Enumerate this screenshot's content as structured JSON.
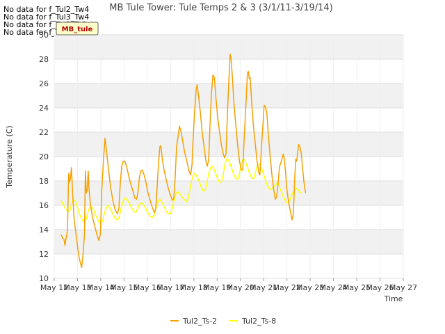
{
  "no_data_messages": [
    "No data for f_Tul2_Tw4",
    "No data for f_Tul3_Tw4",
    "No data for f_Tul3_Ts2",
    "No data for f_Tul3_Ts8"
  ],
  "badge": {
    "text": "MB_tule",
    "bg_color": "#ffffcc",
    "text_color": "#b00000"
  },
  "chart_data": {
    "type": "line",
    "title": "MB Tule Tower: Tule Temps 2 & 3 (3/1/11-3/19/14)",
    "xlabel": "Time",
    "ylabel": "Temperature (C)",
    "xlim": [
      0,
      15
    ],
    "ylim": [
      10,
      30
    ],
    "x_ticks": [
      0,
      1,
      2,
      3,
      4,
      5,
      6,
      7,
      8,
      9,
      10,
      11,
      12,
      13,
      14,
      15
    ],
    "x_tick_labels": [
      "May 12",
      "May 13",
      "May 14",
      "May 15",
      "May 16",
      "May 17",
      "May 18",
      "May 19",
      "May 20",
      "May 21",
      "May 22",
      "May 23",
      "May 24",
      "May 25",
      "May 26",
      "May 27"
    ],
    "y_ticks": [
      10,
      12,
      14,
      16,
      18,
      20,
      22,
      24,
      26,
      28,
      30
    ],
    "y_tick_labels": [
      "10",
      "12",
      "14",
      "16",
      "18",
      "20",
      "22",
      "24",
      "26",
      "28",
      "30"
    ],
    "grid": true,
    "legend_position": "bottom-center",
    "series": [
      {
        "name": "Tul2_Ts-2",
        "color": "#f5a000",
        "points": [
          [
            0.3,
            13.6
          ],
          [
            0.36,
            13.3
          ],
          [
            0.42,
            13.2
          ],
          [
            0.46,
            12.7
          ],
          [
            0.52,
            13.4
          ],
          [
            0.57,
            14.0
          ],
          [
            0.62,
            18.6
          ],
          [
            0.66,
            17.9
          ],
          [
            0.7,
            18.2
          ],
          [
            0.74,
            19.1
          ],
          [
            0.78,
            17.4
          ],
          [
            0.85,
            15.0
          ],
          [
            0.95,
            13.4
          ],
          [
            1.05,
            11.9
          ],
          [
            1.12,
            11.3
          ],
          [
            1.18,
            10.9
          ],
          [
            1.24,
            12.0
          ],
          [
            1.3,
            13.6
          ],
          [
            1.34,
            18.8
          ],
          [
            1.38,
            17.0
          ],
          [
            1.42,
            17.3
          ],
          [
            1.46,
            18.8
          ],
          [
            1.5,
            17.2
          ],
          [
            1.56,
            16.0
          ],
          [
            1.65,
            15.0
          ],
          [
            1.75,
            14.2
          ],
          [
            1.85,
            13.5
          ],
          [
            1.92,
            13.1
          ],
          [
            1.98,
            13.6
          ],
          [
            2.05,
            17.5
          ],
          [
            2.12,
            19.8
          ],
          [
            2.18,
            21.5
          ],
          [
            2.25,
            20.4
          ],
          [
            2.33,
            19.0
          ],
          [
            2.42,
            17.5
          ],
          [
            2.52,
            16.4
          ],
          [
            2.62,
            15.6
          ],
          [
            2.72,
            15.3
          ],
          [
            2.78,
            15.8
          ],
          [
            2.84,
            17.8
          ],
          [
            2.9,
            19.2
          ],
          [
            2.96,
            19.6
          ],
          [
            3.04,
            19.6
          ],
          [
            3.12,
            19.1
          ],
          [
            3.2,
            18.4
          ],
          [
            3.28,
            17.8
          ],
          [
            3.38,
            17.2
          ],
          [
            3.46,
            16.6
          ],
          [
            3.54,
            16.5
          ],
          [
            3.6,
            17.1
          ],
          [
            3.66,
            18.3
          ],
          [
            3.72,
            18.8
          ],
          [
            3.78,
            18.9
          ],
          [
            3.86,
            18.5
          ],
          [
            3.94,
            17.9
          ],
          [
            4.02,
            17.1
          ],
          [
            4.12,
            16.4
          ],
          [
            4.22,
            15.8
          ],
          [
            4.3,
            15.4
          ],
          [
            4.36,
            15.7
          ],
          [
            4.42,
            17.4
          ],
          [
            4.48,
            19.4
          ],
          [
            4.54,
            20.8
          ],
          [
            4.58,
            20.9
          ],
          [
            4.64,
            19.9
          ],
          [
            4.7,
            19.1
          ],
          [
            4.8,
            18.2
          ],
          [
            4.9,
            17.4
          ],
          [
            5.0,
            16.8
          ],
          [
            5.08,
            16.4
          ],
          [
            5.14,
            16.6
          ],
          [
            5.2,
            18.4
          ],
          [
            5.26,
            20.8
          ],
          [
            5.32,
            21.6
          ],
          [
            5.38,
            22.5
          ],
          [
            5.44,
            22.1
          ],
          [
            5.52,
            21.3
          ],
          [
            5.6,
            20.4
          ],
          [
            5.7,
            19.6
          ],
          [
            5.78,
            18.9
          ],
          [
            5.86,
            18.5
          ],
          [
            5.92,
            19.3
          ],
          [
            5.98,
            21.8
          ],
          [
            6.04,
            23.9
          ],
          [
            6.1,
            25.5
          ],
          [
            6.14,
            25.9
          ],
          [
            6.2,
            25.0
          ],
          [
            6.28,
            23.6
          ],
          [
            6.36,
            22.0
          ],
          [
            6.44,
            20.8
          ],
          [
            6.52,
            19.6
          ],
          [
            6.58,
            19.2
          ],
          [
            6.64,
            19.8
          ],
          [
            6.7,
            22.8
          ],
          [
            6.76,
            25.2
          ],
          [
            6.82,
            26.7
          ],
          [
            6.88,
            26.5
          ],
          [
            6.94,
            25.0
          ],
          [
            7.02,
            23.3
          ],
          [
            7.1,
            22.1
          ],
          [
            7.18,
            21.0
          ],
          [
            7.26,
            20.2
          ],
          [
            7.32,
            19.9
          ],
          [
            7.38,
            20.2
          ],
          [
            7.44,
            23.4
          ],
          [
            7.5,
            26.1
          ],
          [
            7.56,
            28.4
          ],
          [
            7.6,
            28.0
          ],
          [
            7.66,
            26.4
          ],
          [
            7.72,
            24.4
          ],
          [
            7.8,
            22.7
          ],
          [
            7.88,
            21.0
          ],
          [
            7.96,
            19.6
          ],
          [
            8.04,
            18.9
          ],
          [
            8.1,
            18.9
          ],
          [
            8.16,
            21.4
          ],
          [
            8.24,
            24.4
          ],
          [
            8.3,
            26.8
          ],
          [
            8.34,
            27.0
          ],
          [
            8.38,
            26.4
          ],
          [
            8.42,
            26.5
          ],
          [
            8.48,
            24.6
          ],
          [
            8.56,
            22.5
          ],
          [
            8.64,
            21.0
          ],
          [
            8.72,
            19.6
          ],
          [
            8.8,
            18.6
          ],
          [
            8.84,
            18.5
          ],
          [
            8.9,
            20.6
          ],
          [
            8.96,
            22.4
          ],
          [
            9.02,
            24.2
          ],
          [
            9.08,
            24.1
          ],
          [
            9.14,
            23.5
          ],
          [
            9.2,
            21.8
          ],
          [
            9.28,
            20.0
          ],
          [
            9.36,
            18.4
          ],
          [
            9.44,
            17.2
          ],
          [
            9.5,
            16.5
          ],
          [
            9.56,
            16.7
          ],
          [
            9.62,
            17.8
          ],
          [
            9.68,
            19.2
          ],
          [
            9.74,
            19.5
          ],
          [
            9.8,
            19.9
          ],
          [
            9.84,
            20.2
          ],
          [
            9.88,
            19.9
          ],
          [
            9.94,
            18.7
          ],
          [
            10.0,
            17.2
          ],
          [
            10.08,
            16.2
          ],
          [
            10.16,
            15.4
          ],
          [
            10.22,
            14.8
          ],
          [
            10.26,
            15.1
          ],
          [
            10.3,
            16.4
          ],
          [
            10.34,
            18.4
          ],
          [
            10.38,
            19.8
          ],
          [
            10.42,
            19.6
          ],
          [
            10.46,
            20.3
          ],
          [
            10.5,
            21.0
          ],
          [
            10.56,
            20.8
          ],
          [
            10.62,
            20.2
          ],
          [
            10.68,
            18.9
          ],
          [
            10.74,
            17.8
          ],
          [
            10.8,
            17.0
          ]
        ]
      },
      {
        "name": "Tul2_Ts-8",
        "color": "#ffff00",
        "points": [
          [
            0.3,
            16.4
          ],
          [
            0.4,
            16.0
          ],
          [
            0.5,
            15.7
          ],
          [
            0.6,
            15.5
          ],
          [
            0.68,
            15.6
          ],
          [
            0.76,
            16.2
          ],
          [
            0.84,
            16.5
          ],
          [
            0.92,
            16.3
          ],
          [
            1.0,
            15.8
          ],
          [
            1.1,
            15.2
          ],
          [
            1.2,
            14.8
          ],
          [
            1.28,
            14.6
          ],
          [
            1.36,
            14.8
          ],
          [
            1.44,
            15.4
          ],
          [
            1.52,
            15.8
          ],
          [
            1.6,
            15.9
          ],
          [
            1.7,
            15.6
          ],
          [
            1.8,
            15.1
          ],
          [
            1.9,
            14.7
          ],
          [
            2.0,
            14.5
          ],
          [
            2.08,
            14.7
          ],
          [
            2.16,
            15.4
          ],
          [
            2.24,
            15.8
          ],
          [
            2.32,
            16.0
          ],
          [
            2.42,
            15.7
          ],
          [
            2.52,
            15.3
          ],
          [
            2.62,
            14.9
          ],
          [
            2.72,
            14.8
          ],
          [
            2.8,
            15.1
          ],
          [
            2.88,
            15.8
          ],
          [
            2.96,
            16.3
          ],
          [
            3.04,
            16.6
          ],
          [
            3.12,
            16.5
          ],
          [
            3.22,
            16.2
          ],
          [
            3.32,
            15.8
          ],
          [
            3.42,
            15.5
          ],
          [
            3.5,
            15.4
          ],
          [
            3.58,
            15.7
          ],
          [
            3.66,
            16.1
          ],
          [
            3.74,
            16.2
          ],
          [
            3.82,
            16.1
          ],
          [
            3.92,
            15.8
          ],
          [
            4.02,
            15.4
          ],
          [
            4.12,
            15.1
          ],
          [
            4.22,
            15.0
          ],
          [
            4.3,
            15.2
          ],
          [
            4.38,
            15.8
          ],
          [
            4.46,
            16.3
          ],
          [
            4.54,
            16.5
          ],
          [
            4.62,
            16.3
          ],
          [
            4.72,
            15.9
          ],
          [
            4.82,
            15.5
          ],
          [
            4.92,
            15.3
          ],
          [
            5.0,
            15.3
          ],
          [
            5.08,
            15.8
          ],
          [
            5.16,
            16.5
          ],
          [
            5.24,
            17.0
          ],
          [
            5.32,
            17.1
          ],
          [
            5.42,
            16.9
          ],
          [
            5.52,
            16.6
          ],
          [
            5.62,
            16.4
          ],
          [
            5.7,
            16.3
          ],
          [
            5.78,
            16.7
          ],
          [
            5.86,
            17.6
          ],
          [
            5.94,
            18.3
          ],
          [
            6.02,
            18.6
          ],
          [
            6.1,
            18.5
          ],
          [
            6.2,
            18.1
          ],
          [
            6.3,
            17.6
          ],
          [
            6.4,
            17.2
          ],
          [
            6.48,
            17.2
          ],
          [
            6.56,
            17.8
          ],
          [
            6.64,
            18.6
          ],
          [
            6.72,
            19.1
          ],
          [
            6.8,
            19.2
          ],
          [
            6.9,
            18.8
          ],
          [
            7.0,
            18.3
          ],
          [
            7.1,
            17.9
          ],
          [
            7.18,
            17.9
          ],
          [
            7.26,
            18.5
          ],
          [
            7.34,
            19.4
          ],
          [
            7.42,
            19.8
          ],
          [
            7.5,
            19.7
          ],
          [
            7.6,
            19.2
          ],
          [
            7.7,
            18.6
          ],
          [
            7.8,
            18.2
          ],
          [
            7.88,
            18.1
          ],
          [
            7.96,
            18.6
          ],
          [
            8.04,
            19.4
          ],
          [
            8.12,
            19.8
          ],
          [
            8.2,
            19.7
          ],
          [
            8.3,
            19.1
          ],
          [
            8.4,
            18.6
          ],
          [
            8.5,
            18.2
          ],
          [
            8.58,
            18.2
          ],
          [
            8.66,
            18.8
          ],
          [
            8.74,
            19.3
          ],
          [
            8.82,
            19.4
          ],
          [
            8.92,
            19.0
          ],
          [
            9.02,
            18.4
          ],
          [
            9.12,
            17.8
          ],
          [
            9.22,
            17.4
          ],
          [
            9.32,
            17.3
          ],
          [
            9.42,
            17.5
          ],
          [
            9.52,
            17.7
          ],
          [
            9.62,
            17.9
          ],
          [
            9.7,
            17.4
          ],
          [
            9.8,
            16.9
          ],
          [
            9.9,
            16.5
          ],
          [
            10.0,
            16.2
          ],
          [
            10.08,
            16.2
          ],
          [
            10.16,
            16.6
          ],
          [
            10.24,
            17.0
          ],
          [
            10.32,
            17.2
          ],
          [
            10.4,
            17.4
          ],
          [
            10.48,
            17.3
          ],
          [
            10.56,
            17.1
          ],
          [
            10.62,
            17.0
          ]
        ]
      }
    ]
  }
}
